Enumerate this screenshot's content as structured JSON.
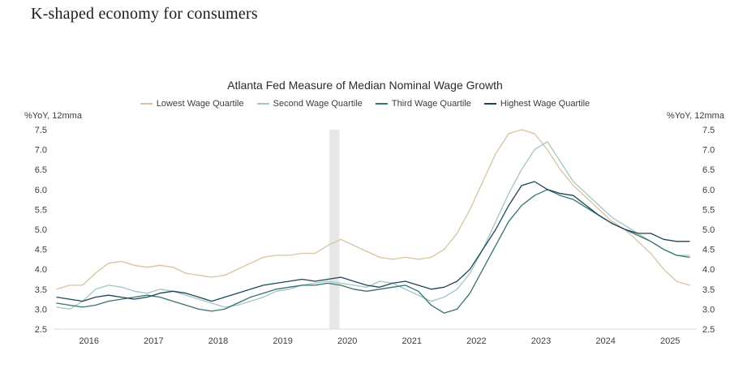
{
  "page": {
    "title": "K-shaped economy for consumers"
  },
  "chart_data": {
    "type": "line",
    "title": "Atlanta Fed Measure of Median Nominal Wage Growth",
    "ylabel": "%YoY, 12mma",
    "xlabel": "",
    "ylim": [
      2.5,
      7.5
    ],
    "xlim": [
      2015.45,
      2025.4
    ],
    "grid": false,
    "legend_position": "top",
    "y_ticks": [
      2.5,
      3.0,
      3.5,
      4.0,
      4.5,
      5.0,
      5.5,
      6.0,
      6.5,
      7.0,
      7.5
    ],
    "x_ticks": [
      2016,
      2017,
      2018,
      2019,
      2020,
      2021,
      2022,
      2023,
      2024,
      2025
    ],
    "recession_band": {
      "x_start": 2019.72,
      "x_end": 2019.88,
      "color": "#e8e8e8"
    },
    "x": [
      2015.5,
      2015.7,
      2015.9,
      2016.1,
      2016.3,
      2016.5,
      2016.7,
      2016.9,
      2017.1,
      2017.3,
      2017.5,
      2017.7,
      2017.9,
      2018.1,
      2018.3,
      2018.5,
      2018.7,
      2018.9,
      2019.1,
      2019.3,
      2019.5,
      2019.7,
      2019.9,
      2020.1,
      2020.3,
      2020.5,
      2020.7,
      2020.9,
      2021.1,
      2021.3,
      2021.5,
      2021.7,
      2021.9,
      2022.1,
      2022.3,
      2022.5,
      2022.7,
      2022.9,
      2023.1,
      2023.3,
      2023.5,
      2023.7,
      2023.9,
      2024.1,
      2024.3,
      2024.5,
      2024.7,
      2024.9,
      2025.1,
      2025.3
    ],
    "series": [
      {
        "name": "Lowest Wage Quartile",
        "color": "#d8c2a0",
        "values": [
          3.5,
          3.6,
          3.6,
          3.9,
          4.15,
          4.2,
          4.1,
          4.05,
          4.1,
          4.05,
          3.9,
          3.85,
          3.8,
          3.85,
          4.0,
          4.15,
          4.3,
          4.35,
          4.35,
          4.4,
          4.4,
          4.6,
          4.75,
          4.6,
          4.45,
          4.3,
          4.25,
          4.3,
          4.25,
          4.3,
          4.5,
          4.9,
          5.5,
          6.2,
          6.9,
          7.4,
          7.5,
          7.4,
          7.0,
          6.5,
          6.1,
          5.8,
          5.5,
          5.2,
          5.0,
          4.7,
          4.4,
          4.0,
          3.7,
          3.6
        ]
      },
      {
        "name": "Second Wage Quartile",
        "color": "#a3c6c2",
        "values": [
          3.05,
          3.0,
          3.2,
          3.5,
          3.6,
          3.55,
          3.45,
          3.4,
          3.5,
          3.45,
          3.35,
          3.25,
          3.15,
          3.05,
          3.1,
          3.2,
          3.3,
          3.45,
          3.5,
          3.6,
          3.65,
          3.7,
          3.65,
          3.6,
          3.55,
          3.7,
          3.65,
          3.5,
          3.35,
          3.2,
          3.3,
          3.5,
          3.9,
          4.5,
          5.2,
          5.9,
          6.5,
          7.0,
          7.2,
          6.7,
          6.2,
          5.9,
          5.6,
          5.3,
          5.1,
          4.9,
          4.7,
          4.5,
          4.35,
          4.35
        ]
      },
      {
        "name": "Third Wage Quartile",
        "color": "#35726f",
        "values": [
          3.15,
          3.1,
          3.05,
          3.1,
          3.2,
          3.25,
          3.3,
          3.35,
          3.3,
          3.2,
          3.1,
          3.0,
          2.95,
          3.0,
          3.15,
          3.3,
          3.4,
          3.5,
          3.55,
          3.6,
          3.6,
          3.65,
          3.6,
          3.5,
          3.45,
          3.5,
          3.55,
          3.6,
          3.45,
          3.1,
          2.9,
          3.0,
          3.4,
          4.0,
          4.6,
          5.2,
          5.6,
          5.85,
          6.0,
          5.85,
          5.75,
          5.55,
          5.35,
          5.15,
          5.0,
          4.85,
          4.7,
          4.5,
          4.35,
          4.3
        ]
      },
      {
        "name": "Highest Wage Quartile",
        "color": "#1c4657",
        "values": [
          3.3,
          3.25,
          3.2,
          3.3,
          3.35,
          3.3,
          3.25,
          3.3,
          3.4,
          3.45,
          3.4,
          3.3,
          3.2,
          3.3,
          3.4,
          3.5,
          3.6,
          3.65,
          3.7,
          3.75,
          3.7,
          3.75,
          3.8,
          3.7,
          3.6,
          3.55,
          3.65,
          3.7,
          3.6,
          3.5,
          3.55,
          3.7,
          4.0,
          4.5,
          5.0,
          5.6,
          6.1,
          6.2,
          6.0,
          5.9,
          5.85,
          5.6,
          5.35,
          5.15,
          5.0,
          4.9,
          4.9,
          4.75,
          4.7,
          4.7
        ]
      }
    ]
  }
}
